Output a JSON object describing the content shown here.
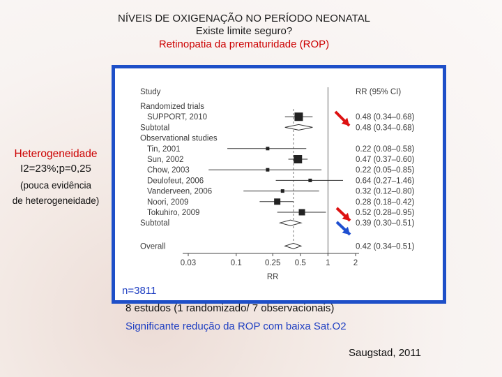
{
  "header": {
    "title": "NÍVEIS DE OXIGENAÇÃO NO PERÍODO NEONATAL",
    "subtitle": "Existe limite seguro?",
    "topic": "Retinopatia da prematuridade (ROP)"
  },
  "heterogeneity": {
    "label": "Heterogeneidade",
    "stat": "I2=23%;p=0,25",
    "note_line1": "(pouca evidência",
    "note_line2": "de heterogeneidade)"
  },
  "footer": {
    "n": "n=3811",
    "studies": "8 estudos (1 randomizado/ 7 observacionais)",
    "conclusion": "Significante redução da ROP com baixa Sat.O2",
    "citation": "Saugstad, 2011"
  },
  "colors": {
    "frame": "#1e4fc8",
    "red_arrow": "#dd1111",
    "blue_arrow": "#1f4fd0"
  },
  "chart_data": {
    "type": "forest",
    "header_left": "Study",
    "header_right": "RR (95% CI)",
    "xlabel": "RR",
    "x_scale": "log",
    "x_ticks": [
      "0.03",
      "0.1",
      "0.25",
      "0.5",
      "1",
      "2"
    ],
    "rows": [
      {
        "label": "Randomized trials",
        "kind": "group"
      },
      {
        "label": "SUPPORT, 2010",
        "kind": "study",
        "rr": 0.48,
        "lo": 0.34,
        "hi": 0.68,
        "ci": "0.48 (0.34–0.68)",
        "weight": "large"
      },
      {
        "label": "Subtotal",
        "kind": "subtotal",
        "rr": 0.48,
        "lo": 0.34,
        "hi": 0.68,
        "ci": "0.48 (0.34–0.68)"
      },
      {
        "label": "Observational studies",
        "kind": "group"
      },
      {
        "label": "Tin, 2001",
        "kind": "study",
        "rr": 0.22,
        "lo": 0.08,
        "hi": 0.58,
        "ci": "0.22 (0.08–0.58)",
        "weight": "small"
      },
      {
        "label": "Sun, 2002",
        "kind": "study",
        "rr": 0.47,
        "lo": 0.37,
        "hi": 0.6,
        "ci": "0.47 (0.37–0.60)",
        "weight": "large"
      },
      {
        "label": "Chow, 2003",
        "kind": "study",
        "rr": 0.22,
        "lo": 0.05,
        "hi": 0.85,
        "ci": "0.22 (0.05–0.85)",
        "weight": "small"
      },
      {
        "label": "Deulofeut, 2006",
        "kind": "study",
        "rr": 0.64,
        "lo": 0.27,
        "hi": 1.46,
        "ci": "0.64 (0.27–1.46)",
        "weight": "small"
      },
      {
        "label": "Vanderveen, 2006",
        "kind": "study",
        "rr": 0.32,
        "lo": 0.12,
        "hi": 0.8,
        "ci": "0.32 (0.12–0.80)",
        "weight": "small"
      },
      {
        "label": "Noori, 2009",
        "kind": "study",
        "rr": 0.28,
        "lo": 0.18,
        "hi": 0.42,
        "ci": "0.28 (0.18–0.42)",
        "weight": "medium"
      },
      {
        "label": "Tokuhiro, 2009",
        "kind": "study",
        "rr": 0.52,
        "lo": 0.28,
        "hi": 0.95,
        "ci": "0.52 (0.28–0.95)",
        "weight": "medium"
      },
      {
        "label": "Subtotal",
        "kind": "subtotal",
        "rr": 0.39,
        "lo": 0.3,
        "hi": 0.51,
        "ci": "0.39 (0.30–0.51)"
      },
      {
        "label": "Overall",
        "kind": "overall",
        "rr": 0.42,
        "lo": 0.34,
        "hi": 0.51,
        "ci": "0.42 (0.34–0.51)"
      }
    ]
  }
}
